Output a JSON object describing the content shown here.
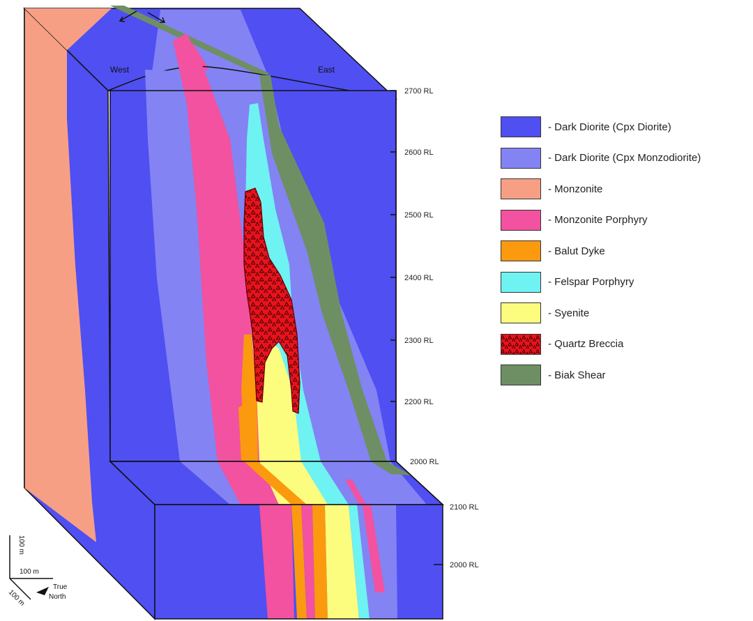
{
  "diagram": {
    "west_label": "West",
    "east_label": "East",
    "upper_rl_labels": [
      "2700 RL",
      "2600 RL",
      "2500 RL",
      "2400 RL",
      "2300 RL",
      "2200 RL",
      "2000 RL"
    ],
    "lower_rl_labels": [
      "2100 RL",
      "2000 RL"
    ],
    "scale": {
      "vertical": "100 m",
      "horizontal": "100 m",
      "depth": "100 m",
      "north_line1": "True",
      "north_line2": "North"
    }
  },
  "legend": {
    "items": [
      {
        "label": "- Dark Diorite (Cpx Diorite)",
        "color": "#4f4ff2",
        "pattern": "solid"
      },
      {
        "label": "- Dark Diorite (Cpx Monzodiorite)",
        "color": "#8383f4",
        "pattern": "solid"
      },
      {
        "label": "- Monzonite",
        "color": "#f79f84",
        "pattern": "solid"
      },
      {
        "label": "- Monzonite Porphyry",
        "color": "#f2529f",
        "pattern": "solid"
      },
      {
        "label": "- Balut Dyke",
        "color": "#fb9a0e",
        "pattern": "solid"
      },
      {
        "label": "- Felspar Porphyry",
        "color": "#6ff2f2",
        "pattern": "solid"
      },
      {
        "label": "- Syenite",
        "color": "#fcfc7e",
        "pattern": "solid"
      },
      {
        "label": "- Quartz Breccia",
        "color": "#e8131d",
        "pattern": "breccia"
      },
      {
        "label": "- Biak Shear",
        "color": "#6e8f64",
        "pattern": "solid"
      }
    ]
  }
}
